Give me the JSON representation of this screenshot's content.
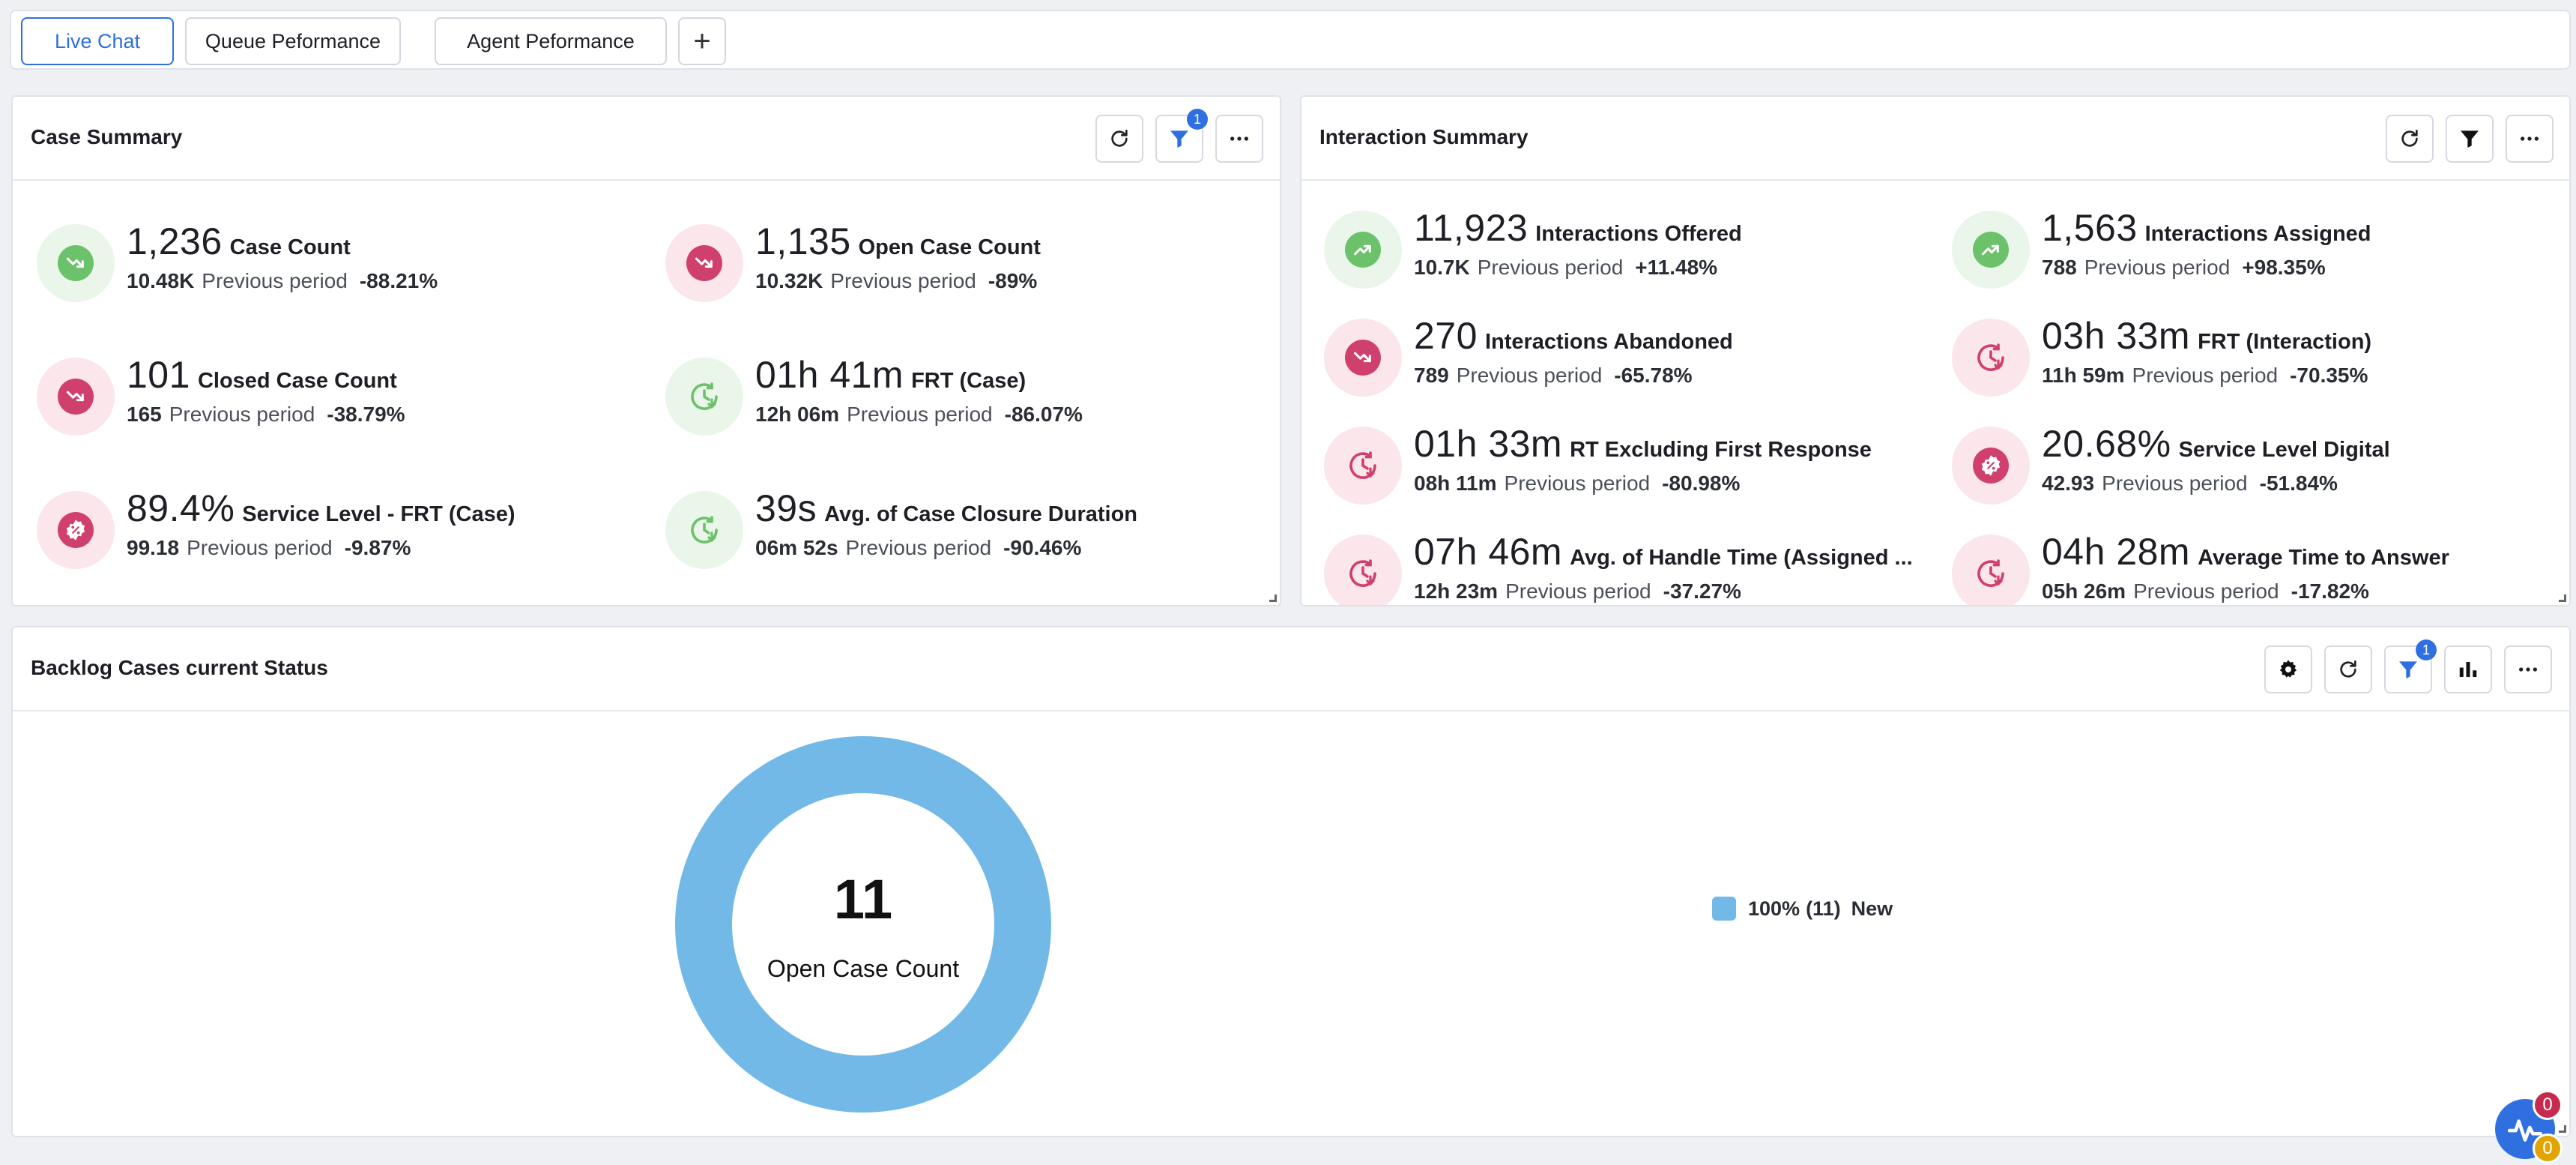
{
  "tabs": [
    {
      "label": "Live Chat",
      "active": true
    },
    {
      "label": "Queue Peformance",
      "active": false
    },
    {
      "label": "Agent Peformance",
      "active": false
    }
  ],
  "add_tab_label": "+",
  "case_summary": {
    "title": "Case Summary",
    "filter_badge": "1",
    "metrics": [
      {
        "icon": "trend-down-icon",
        "tone": "green",
        "value": "1,236",
        "label": "Case Count",
        "previous": "10.48K",
        "previous_label": "Previous period",
        "delta": "-88.21%"
      },
      {
        "icon": "trend-down-icon",
        "tone": "red",
        "value": "1,135",
        "label": "Open Case Count",
        "previous": "10.32K",
        "previous_label": "Previous period",
        "delta": "-89%"
      },
      {
        "icon": "trend-down-icon",
        "tone": "red",
        "value": "101",
        "label": "Closed Case Count",
        "previous": "165",
        "previous_label": "Previous period",
        "delta": "-38.79%"
      },
      {
        "icon": "clock-down-icon",
        "tone": "green",
        "value": "01h 41m",
        "label": "FRT (Case)",
        "previous": "12h 06m",
        "previous_label": "Previous period",
        "delta": "-86.07%"
      },
      {
        "icon": "percent-badge-icon",
        "tone": "red",
        "value": "89.4%",
        "label": "Service Level - FRT (Case)",
        "previous": "99.18",
        "previous_label": "Previous period",
        "delta": "-9.87%"
      },
      {
        "icon": "clock-down-icon",
        "tone": "green",
        "value": "39s",
        "label": "Avg. of Case Closure Duration",
        "previous": "06m 52s",
        "previous_label": "Previous period",
        "delta": "-90.46%"
      }
    ]
  },
  "interaction_summary": {
    "title": "Interaction Summary",
    "metrics": [
      {
        "icon": "trend-up-icon",
        "tone": "green",
        "value": "11,923",
        "label": "Interactions Offered",
        "previous": "10.7K",
        "previous_label": "Previous period",
        "delta": "+11.48%"
      },
      {
        "icon": "trend-up-icon",
        "tone": "green",
        "value": "1,563",
        "label": "Interactions Assigned",
        "previous": "788",
        "previous_label": "Previous period",
        "delta": "+98.35%"
      },
      {
        "icon": "trend-down-icon",
        "tone": "red",
        "value": "270",
        "label": "Interactions Abandoned",
        "previous": "789",
        "previous_label": "Previous period",
        "delta": "-65.78%"
      },
      {
        "icon": "clock-down-icon",
        "tone": "red",
        "value": "03h 33m",
        "label": "FRT (Interaction)",
        "previous": "11h 59m",
        "previous_label": "Previous period",
        "delta": "-70.35%"
      },
      {
        "icon": "clock-down-icon",
        "tone": "red",
        "value": "01h 33m",
        "label": "RT Excluding First Response",
        "previous": "08h 11m",
        "previous_label": "Previous period",
        "delta": "-80.98%"
      },
      {
        "icon": "percent-badge-icon",
        "tone": "red",
        "value": "20.68%",
        "label": "Service Level Digital",
        "previous": "42.93",
        "previous_label": "Previous period",
        "delta": "-51.84%"
      },
      {
        "icon": "clock-down-icon",
        "tone": "red",
        "value": "07h 46m",
        "label": "Avg. of Handle Time (Assigned ...",
        "previous": "12h 23m",
        "previous_label": "Previous period",
        "delta": "-37.27%"
      },
      {
        "icon": "clock-down-icon",
        "tone": "red",
        "value": "04h 28m",
        "label": "Average Time to Answer",
        "previous": "05h 26m",
        "previous_label": "Previous period",
        "delta": "-17.82%"
      }
    ]
  },
  "backlog": {
    "title": "Backlog Cases current Status",
    "filter_badge": "1"
  },
  "chart_data": {
    "type": "pie",
    "center_value": "11",
    "center_label": "Open Case Count",
    "slices": [
      {
        "name": "New",
        "value": 11,
        "percent": "100%",
        "count_label": "(11)",
        "color": "#72b9e7"
      }
    ]
  },
  "fab": {
    "badge_top": "0",
    "badge_bottom": "0"
  },
  "colors": {
    "accent": "#2f6fe0",
    "positive": "#6cc26b",
    "negative": "#d0406d",
    "donut": "#72b9e7"
  }
}
